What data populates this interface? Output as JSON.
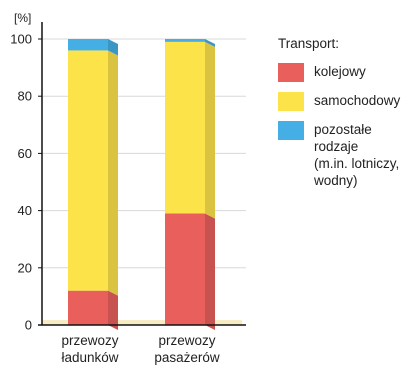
{
  "chart_data": {
    "type": "bar",
    "stacked": true,
    "unit": "[%]",
    "ylim": [
      0,
      100
    ],
    "yticks": [
      0,
      20,
      40,
      60,
      80,
      100
    ],
    "grid": true,
    "categories": [
      "przewozy\nładunków",
      "przewozy\npasażerów"
    ],
    "legend_title": "Transport:",
    "legend_position": "right",
    "series": [
      {
        "name": "kolejowy",
        "color": "#e85f5c",
        "values": [
          12,
          39
        ]
      },
      {
        "name": "samochodowy",
        "color": "#fce34a",
        "values": [
          84,
          60
        ]
      },
      {
        "name": "pozostałe\nrodzaje\n(m.in. lotniczy,\nwodny)",
        "color": "#45aee5",
        "values": [
          4,
          1
        ]
      }
    ]
  }
}
